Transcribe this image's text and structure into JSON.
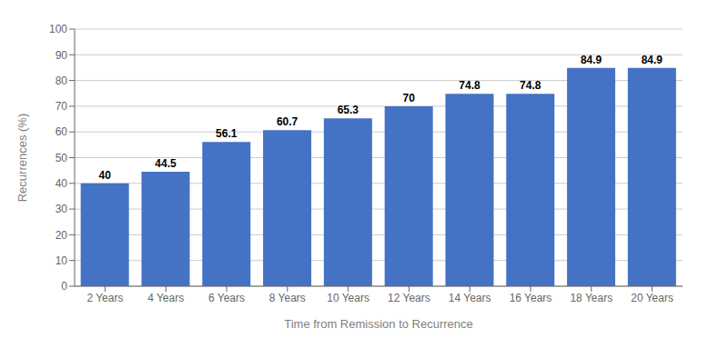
{
  "chart_data": {
    "type": "bar",
    "categories": [
      "2 Years",
      "4 Years",
      "6 Years",
      "8 Years",
      "10 Years",
      "12 Years",
      "14 Years",
      "16 Years",
      "18 Years",
      "20 Years"
    ],
    "values": [
      40,
      44.5,
      56.1,
      60.7,
      65.3,
      70,
      74.8,
      74.8,
      84.9,
      84.9
    ],
    "color": "#4472C4",
    "xlabel": "Time from Remission to Recurrence",
    "ylabel": "Recurrences (%)",
    "ylim": [
      0,
      100
    ],
    "yticks": [
      0,
      10,
      20,
      30,
      40,
      50,
      60,
      70,
      80,
      90,
      100
    ],
    "grid": true,
    "data_labels": true
  }
}
